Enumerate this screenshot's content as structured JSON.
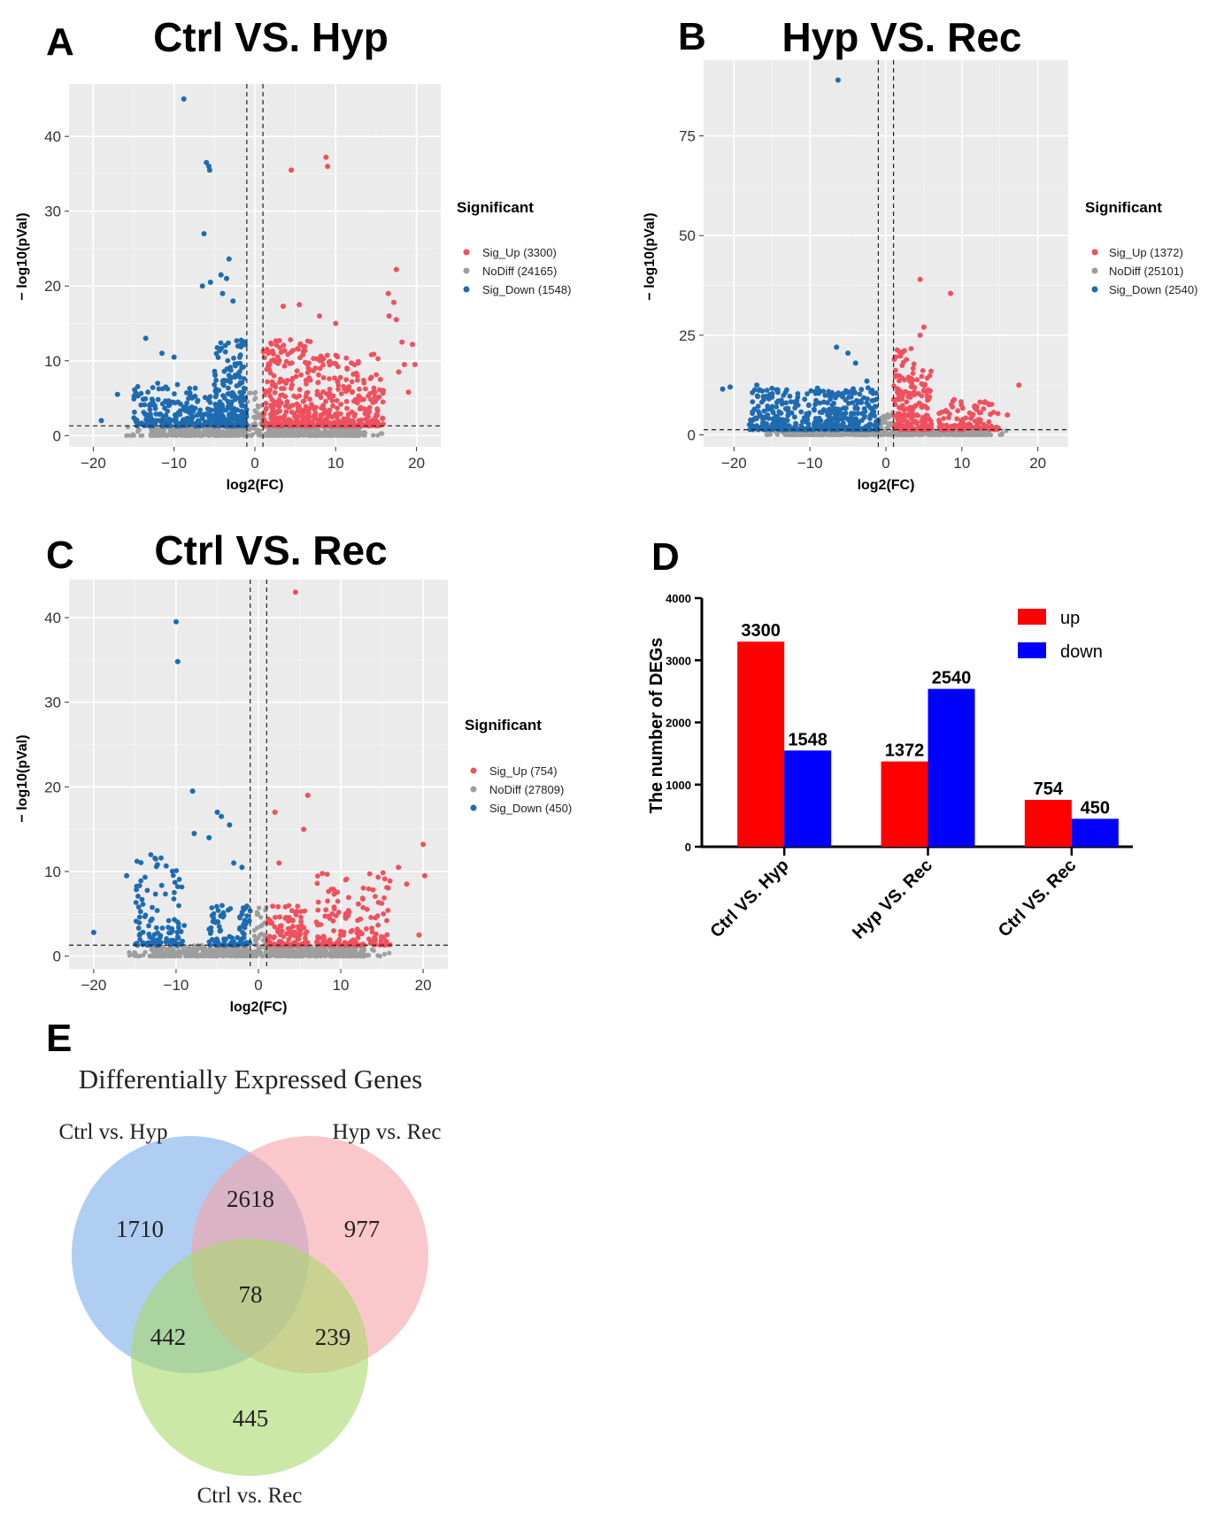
{
  "colors": {
    "up": "#f0505e",
    "nodiff": "#9e9e9e",
    "down": "#1f6bb0",
    "bar_up": "#ff0000",
    "bar_down": "#0000ff",
    "panel_bg": "#ebebeb",
    "grid": "#ffffff"
  },
  "panelE": {
    "letter": "E",
    "title": "Differentially Expressed Genes",
    "sets": [
      "Ctrl vs. Hyp",
      "Hyp vs. Rec",
      "Ctrl vs. Rec"
    ],
    "set_colors": [
      "#7aaeea",
      "#f7a3a7",
      "#a9d96a"
    ],
    "regions": [
      {
        "key": "A_only",
        "value": "1710"
      },
      {
        "key": "AB",
        "value": "2618"
      },
      {
        "key": "B_only",
        "value": "977"
      },
      {
        "key": "ABC",
        "value": "78"
      },
      {
        "key": "AC",
        "value": "442"
      },
      {
        "key": "BC",
        "value": "239"
      },
      {
        "key": "C_only",
        "value": "445"
      }
    ]
  },
  "chart_data": [
    {
      "id": "A",
      "type": "scatter",
      "letter": "A",
      "title": "Ctrl VS. Hyp",
      "xlabel": "log2(FC)",
      "ylabel": "− log10(pVal)",
      "xlim": [
        -23,
        23
      ],
      "ylim": [
        -1.5,
        47
      ],
      "xticks": [
        -20,
        -10,
        0,
        10,
        20
      ],
      "xtick_labels": [
        "−20",
        "−10",
        "0",
        "10",
        "20"
      ],
      "yticks": [
        0,
        10,
        20,
        30,
        40
      ],
      "ytick_labels": [
        "0",
        "10",
        "20",
        "30",
        "40"
      ],
      "vlines": [
        -1,
        1
      ],
      "hline": 1.3,
      "legend_title": "Significant",
      "legend": [
        "Sig_Up (3300)",
        "NoDiff (24165)",
        "Sig_Down (1548)"
      ],
      "groups": [
        {
          "name": "Sig_Up",
          "count": 3300,
          "side": 1,
          "x_range": [
            1,
            19
          ],
          "y_max": 14,
          "clusters": [
            {
              "x": [
                1,
                7
              ],
              "y": [
                1.3,
                13
              ],
              "n": 260
            },
            {
              "x": [
                7,
                16
              ],
              "y": [
                1.3,
                11
              ],
              "n": 260
            }
          ],
          "outliers": [
            [
              4.5,
              35.5
            ],
            [
              8.8,
              37.2
            ],
            [
              9,
              36
            ],
            [
              17.5,
              22.2
            ],
            [
              16.5,
              19
            ],
            [
              17.2,
              17.8
            ],
            [
              16.6,
              16
            ],
            [
              17.5,
              15.5
            ],
            [
              18.2,
              12.5
            ],
            [
              17.8,
              8.5
            ],
            [
              18.5,
              9.5
            ],
            [
              5.5,
              17.5
            ],
            [
              8,
              16
            ],
            [
              10,
              15
            ],
            [
              3.5,
              17.3
            ],
            [
              19.5,
              12.2
            ],
            [
              19.8,
              9.5
            ],
            [
              19,
              5.8
            ]
          ]
        },
        {
          "name": "NoDiff",
          "count": 24165,
          "side": 0
        },
        {
          "name": "Sig_Down",
          "count": 1548,
          "side": -1,
          "clusters": [
            {
              "x": [
                -5,
                -1
              ],
              "y": [
                1.3,
                13
              ],
              "n": 260
            },
            {
              "x": [
                -15,
                -5
              ],
              "y": [
                1.3,
                7
              ],
              "n": 200
            }
          ],
          "outliers": [
            [
              -8.8,
              45
            ],
            [
              -6,
              36.5
            ],
            [
              -5.7,
              36
            ],
            [
              -5.6,
              35.5
            ],
            [
              -6.3,
              27
            ],
            [
              -3.2,
              23.6
            ],
            [
              -4.2,
              21.5
            ],
            [
              -5.5,
              20.5
            ],
            [
              -6.5,
              20
            ],
            [
              -13.5,
              13
            ],
            [
              -17,
              5.5
            ],
            [
              -19,
              2
            ],
            [
              -3.5,
              21
            ],
            [
              -4,
              19
            ],
            [
              -2.7,
              18
            ],
            [
              -10,
              10.5
            ],
            [
              -11.5,
              11
            ]
          ]
        }
      ]
    },
    {
      "id": "B",
      "type": "scatter",
      "letter": "B",
      "title": "Hyp VS. Rec",
      "xlabel": "log2(FC)",
      "ylabel": "− log10(pVal)",
      "xlim": [
        -24,
        24
      ],
      "ylim": [
        -3,
        94
      ],
      "xticks": [
        -20,
        -10,
        0,
        10,
        20
      ],
      "xtick_labels": [
        "−20",
        "−10",
        "0",
        "10",
        "20"
      ],
      "yticks": [
        0,
        25,
        50,
        75
      ],
      "ytick_labels": [
        "0",
        "25",
        "50",
        "75"
      ],
      "vlines": [
        -1,
        1
      ],
      "hline": 1.3,
      "legend_title": "Significant",
      "legend": [
        "Sig_Up (1372)",
        "NoDiff (25101)",
        "Sig_Down (2540)"
      ],
      "groups": [
        {
          "name": "Sig_Up",
          "count": 1372,
          "side": 1,
          "clusters": [
            {
              "x": [
                1,
                6
              ],
              "y": [
                1.3,
                22
              ],
              "n": 200
            },
            {
              "x": [
                7,
                15
              ],
              "y": [
                1.3,
                9
              ],
              "n": 110
            }
          ],
          "outliers": [
            [
              4.5,
              39
            ],
            [
              8.5,
              35.5
            ],
            [
              17.5,
              12.5
            ],
            [
              5,
              27
            ],
            [
              4.5,
              25
            ],
            [
              16,
              5
            ]
          ]
        },
        {
          "name": "NoDiff",
          "count": 25101,
          "side": 0
        },
        {
          "name": "Sig_Down",
          "count": 2540,
          "side": -1,
          "clusters": [
            {
              "x": [
                -9,
                -1
              ],
              "y": [
                1.3,
                12
              ],
              "n": 240
            },
            {
              "x": [
                -18,
                -9
              ],
              "y": [
                1.3,
                12
              ],
              "n": 220
            }
          ],
          "outliers": [
            [
              -6.3,
              89
            ],
            [
              -6.5,
              22
            ],
            [
              -5,
              20.5
            ],
            [
              -4,
              18
            ],
            [
              -20.5,
              12
            ],
            [
              -21.5,
              11.5
            ],
            [
              -17,
              12.5
            ],
            [
              -2.5,
              13.5
            ]
          ]
        }
      ]
    },
    {
      "id": "C",
      "type": "scatter",
      "letter": "C",
      "title": "Ctrl VS. Rec",
      "xlabel": "log2(FC)",
      "ylabel": "− log10(pVal)",
      "xlim": [
        -23,
        23
      ],
      "ylim": [
        -1.5,
        44.5
      ],
      "xticks": [
        -20,
        -10,
        0,
        10,
        20
      ],
      "xtick_labels": [
        "−20",
        "−10",
        "0",
        "10",
        "20"
      ],
      "yticks": [
        0,
        10,
        20,
        30,
        40
      ],
      "ytick_labels": [
        "0",
        "10",
        "20",
        "30",
        "40"
      ],
      "vlines": [
        -1,
        1
      ],
      "hline": 1.3,
      "legend_title": "Significant",
      "legend": [
        "Sig_Up (754)",
        "NoDiff (27809)",
        "Sig_Down (450)"
      ],
      "groups": [
        {
          "name": "Sig_Up",
          "count": 754,
          "side": 1,
          "clusters": [
            {
              "x": [
                1,
                6
              ],
              "y": [
                1.3,
                6
              ],
              "n": 110
            },
            {
              "x": [
                7,
                16
              ],
              "y": [
                1.3,
                10
              ],
              "n": 150
            }
          ],
          "outliers": [
            [
              4.5,
              43
            ],
            [
              6,
              19
            ],
            [
              5.5,
              15
            ],
            [
              2,
              17
            ],
            [
              20,
              13.2
            ],
            [
              20.2,
              9.5
            ],
            [
              17,
              10.5
            ],
            [
              18,
              8.5
            ],
            [
              19.5,
              2.5
            ],
            [
              2.5,
              11
            ]
          ]
        },
        {
          "name": "NoDiff",
          "count": 27809,
          "side": 0
        },
        {
          "name": "Sig_Down",
          "count": 450,
          "side": -1,
          "clusters": [
            {
              "x": [
                -6,
                -1
              ],
              "y": [
                1.3,
                6
              ],
              "n": 90
            },
            {
              "x": [
                -15,
                -9
              ],
              "y": [
                1.3,
                12
              ],
              "n": 110
            }
          ],
          "outliers": [
            [
              -10,
              39.5
            ],
            [
              -9.8,
              34.8
            ],
            [
              -8,
              19.5
            ],
            [
              -5,
              17
            ],
            [
              -4.5,
              16.5
            ],
            [
              -7.8,
              14.5
            ],
            [
              -6,
              14
            ],
            [
              -3.5,
              15.5
            ],
            [
              -20,
              2.8
            ],
            [
              -16,
              9.5
            ],
            [
              -3,
              11
            ],
            [
              -2,
              10.5
            ]
          ]
        }
      ]
    },
    {
      "id": "D",
      "type": "bar",
      "letter": "D",
      "categories": [
        "Ctrl VS. Hyp",
        "Hyp VS. Rec",
        "Ctrl VS. Rec"
      ],
      "series": [
        {
          "name": "up",
          "values": [
            3300,
            1372,
            754
          ]
        },
        {
          "name": "down",
          "values": [
            1548,
            2540,
            450
          ]
        }
      ],
      "value_labels": [
        [
          "3300",
          "1372",
          "754"
        ],
        [
          "1548",
          "2540",
          "450"
        ]
      ],
      "ylabel": "The number of DEGs",
      "ylim": [
        0,
        4000
      ],
      "yticks": [
        0,
        1000,
        2000,
        3000,
        4000
      ],
      "ytick_labels": [
        "0",
        "1000",
        "2000",
        "3000",
        "4000"
      ],
      "legend": [
        "up",
        "down"
      ]
    }
  ]
}
